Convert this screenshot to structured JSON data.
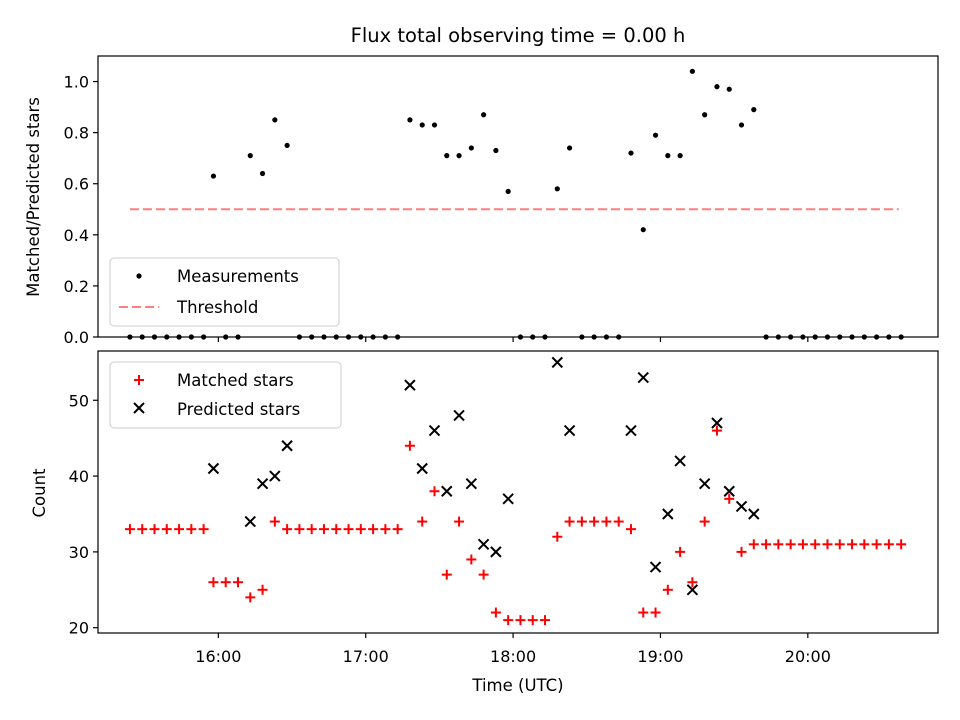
{
  "chart_data": [
    {
      "type": "scatter",
      "title": "Flux total observing time = 0.00 h",
      "xlabel": "",
      "ylabel": "Matched/Predicted stars",
      "ylim": [
        0,
        1.1
      ],
      "yticks": [
        "0.0",
        "0.2",
        "0.4",
        "0.6",
        "0.8",
        "1.0"
      ],
      "yticks_values": [
        0,
        0.2,
        0.4,
        0.6,
        0.8,
        1.0
      ],
      "legend": {
        "placement": "lower-left",
        "entries": [
          "Measurements",
          "Threshold"
        ]
      },
      "threshold": {
        "name": "Threshold",
        "value": 0.5,
        "x_start": "15:24",
        "x_end": "20:37",
        "color": "#ff7f7f",
        "style": "dashed"
      },
      "series": [
        {
          "name": "Measurements",
          "color": "#000000",
          "marker": "dot",
          "points": [
            [
              "15:24",
              0
            ],
            [
              "15:29",
              0
            ],
            [
              "15:34",
              0
            ],
            [
              "15:39",
              0
            ],
            [
              "15:44",
              0
            ],
            [
              "15:49",
              0
            ],
            [
              "15:54",
              0
            ],
            [
              "15:58",
              0.63
            ],
            [
              "16:03",
              0
            ],
            [
              "16:08",
              0
            ],
            [
              "16:13",
              0.71
            ],
            [
              "16:18",
              0.64
            ],
            [
              "16:23",
              0.85
            ],
            [
              "16:28",
              0.75
            ],
            [
              "16:33",
              0
            ],
            [
              "16:38",
              0
            ],
            [
              "16:43",
              0
            ],
            [
              "16:48",
              0
            ],
            [
              "16:53",
              0
            ],
            [
              "16:58",
              0
            ],
            [
              "17:03",
              0
            ],
            [
              "17:08",
              0
            ],
            [
              "17:13",
              0
            ],
            [
              "17:18",
              0.85
            ],
            [
              "17:23",
              0.83
            ],
            [
              "17:28",
              0.83
            ],
            [
              "17:33",
              0.71
            ],
            [
              "17:38",
              0.71
            ],
            [
              "17:43",
              0.74
            ],
            [
              "17:48",
              0.87
            ],
            [
              "17:53",
              0.73
            ],
            [
              "17:58",
              0.57
            ],
            [
              "18:03",
              0
            ],
            [
              "18:08",
              0
            ],
            [
              "18:13",
              0
            ],
            [
              "18:18",
              0.58
            ],
            [
              "18:23",
              0.74
            ],
            [
              "18:28",
              0
            ],
            [
              "18:33",
              0
            ],
            [
              "18:38",
              0
            ],
            [
              "18:43",
              0
            ],
            [
              "18:48",
              0.72
            ],
            [
              "18:53",
              0.42
            ],
            [
              "18:58",
              0.79
            ],
            [
              "19:03",
              0.71
            ],
            [
              "19:08",
              0.71
            ],
            [
              "19:13",
              1.04
            ],
            [
              "19:18",
              0.87
            ],
            [
              "19:23",
              0.98
            ],
            [
              "19:28",
              0.97
            ],
            [
              "19:33",
              0.83
            ],
            [
              "19:38",
              0.89
            ],
            [
              "19:43",
              0
            ],
            [
              "19:48",
              0
            ],
            [
              "19:53",
              0
            ],
            [
              "19:58",
              0
            ],
            [
              "20:03",
              0
            ],
            [
              "20:08",
              0
            ],
            [
              "20:13",
              0
            ],
            [
              "20:18",
              0
            ],
            [
              "20:23",
              0
            ],
            [
              "20:28",
              0
            ],
            [
              "20:33",
              0
            ],
            [
              "20:38",
              0
            ]
          ]
        }
      ]
    },
    {
      "type": "scatter",
      "title": "",
      "xlabel": "Time (UTC)",
      "ylabel": "Count",
      "ylim": [
        19.3,
        56.5
      ],
      "yticks": [
        "20",
        "30",
        "40",
        "50"
      ],
      "yticks_values": [
        20,
        30,
        40,
        50
      ],
      "xlim": [
        "15:11",
        "20:53"
      ],
      "xticks": [
        "16:00",
        "17:00",
        "18:00",
        "19:00",
        "20:00"
      ],
      "legend": {
        "placement": "upper-left",
        "entries": [
          "Matched stars",
          "Predicted stars"
        ]
      },
      "series": [
        {
          "name": "Matched stars",
          "color": "#ff0000",
          "marker": "plus",
          "points": [
            [
              "15:24",
              33
            ],
            [
              "15:29",
              33
            ],
            [
              "15:34",
              33
            ],
            [
              "15:39",
              33
            ],
            [
              "15:44",
              33
            ],
            [
              "15:49",
              33
            ],
            [
              "15:54",
              33
            ],
            [
              "15:58",
              26
            ],
            [
              "16:03",
              26
            ],
            [
              "16:08",
              26
            ],
            [
              "16:13",
              24
            ],
            [
              "16:18",
              25
            ],
            [
              "16:23",
              34
            ],
            [
              "16:28",
              33
            ],
            [
              "16:33",
              33
            ],
            [
              "16:38",
              33
            ],
            [
              "16:43",
              33
            ],
            [
              "16:48",
              33
            ],
            [
              "16:53",
              33
            ],
            [
              "16:58",
              33
            ],
            [
              "17:03",
              33
            ],
            [
              "17:08",
              33
            ],
            [
              "17:13",
              33
            ],
            [
              "17:18",
              44
            ],
            [
              "17:23",
              34
            ],
            [
              "17:28",
              38
            ],
            [
              "17:33",
              27
            ],
            [
              "17:38",
              34
            ],
            [
              "17:43",
              29
            ],
            [
              "17:48",
              27
            ],
            [
              "17:53",
              22
            ],
            [
              "17:58",
              21
            ],
            [
              "18:03",
              21
            ],
            [
              "18:08",
              21
            ],
            [
              "18:13",
              21
            ],
            [
              "18:18",
              32
            ],
            [
              "18:23",
              34
            ],
            [
              "18:28",
              34
            ],
            [
              "18:33",
              34
            ],
            [
              "18:38",
              34
            ],
            [
              "18:43",
              34
            ],
            [
              "18:48",
              33
            ],
            [
              "18:53",
              22
            ],
            [
              "18:58",
              22
            ],
            [
              "19:03",
              25
            ],
            [
              "19:08",
              30
            ],
            [
              "19:13",
              26
            ],
            [
              "19:18",
              34
            ],
            [
              "19:23",
              46
            ],
            [
              "19:28",
              37
            ],
            [
              "19:33",
              30
            ],
            [
              "19:38",
              31
            ],
            [
              "19:43",
              31
            ],
            [
              "19:48",
              31
            ],
            [
              "19:53",
              31
            ],
            [
              "19:58",
              31
            ],
            [
              "20:03",
              31
            ],
            [
              "20:08",
              31
            ],
            [
              "20:13",
              31
            ],
            [
              "20:18",
              31
            ],
            [
              "20:23",
              31
            ],
            [
              "20:28",
              31
            ],
            [
              "20:33",
              31
            ],
            [
              "20:38",
              31
            ]
          ]
        },
        {
          "name": "Predicted stars",
          "color": "#000000",
          "marker": "x",
          "points": [
            [
              "15:58",
              41
            ],
            [
              "16:13",
              34
            ],
            [
              "16:18",
              39
            ],
            [
              "16:23",
              40
            ],
            [
              "16:28",
              44
            ],
            [
              "17:18",
              52
            ],
            [
              "17:23",
              41
            ],
            [
              "17:28",
              46
            ],
            [
              "17:33",
              38
            ],
            [
              "17:38",
              48
            ],
            [
              "17:43",
              39
            ],
            [
              "17:48",
              31
            ],
            [
              "17:53",
              30
            ],
            [
              "17:58",
              37
            ],
            [
              "18:18",
              55
            ],
            [
              "18:23",
              46
            ],
            [
              "18:48",
              46
            ],
            [
              "18:53",
              53
            ],
            [
              "18:58",
              28
            ],
            [
              "19:03",
              35
            ],
            [
              "19:08",
              42
            ],
            [
              "19:13",
              25
            ],
            [
              "19:18",
              39
            ],
            [
              "19:23",
              47
            ],
            [
              "19:28",
              38
            ],
            [
              "19:33",
              36
            ],
            [
              "19:38",
              35
            ]
          ]
        }
      ]
    }
  ]
}
